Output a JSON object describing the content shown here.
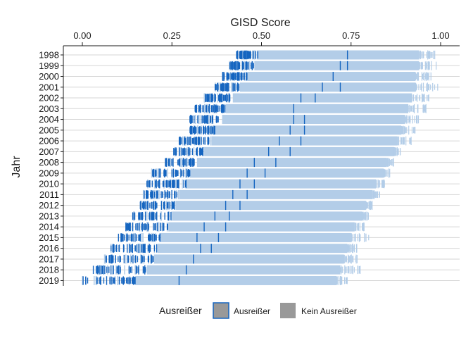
{
  "chart_data": {
    "type": "strip",
    "xlabel": "GISD Score",
    "ylabel": "Jahr",
    "xlim": [
      -0.05,
      1.03
    ],
    "x_ticks": [
      0.0,
      0.25,
      0.5,
      0.75,
      1.0
    ],
    "x_tick_labels": [
      "0.00",
      "0.25",
      "0.50",
      "0.75",
      "1.00"
    ],
    "x_axis_position": "top",
    "categories": [
      "1998",
      "1999",
      "2000",
      "2001",
      "2002",
      "2003",
      "2004",
      "2005",
      "2006",
      "2007",
      "2008",
      "2009",
      "2010",
      "2011",
      "2012",
      "2013",
      "2014",
      "2015",
      "2016",
      "2017",
      "2018",
      "2019"
    ],
    "grid": "horizontal",
    "legend": {
      "title": "Ausreißer",
      "position": "bottom",
      "entries": [
        {
          "label": "Ausreißer",
          "color": "#1565c0"
        },
        {
          "label": "Kein Ausreißer",
          "color": "#b3cde8"
        }
      ]
    },
    "series": [
      {
        "name": "Kein Ausreißer",
        "color": "#b3cde8",
        "core_min": [
          0.49,
          0.48,
          0.46,
          0.44,
          0.42,
          0.4,
          0.39,
          0.37,
          0.36,
          0.34,
          0.32,
          0.3,
          0.29,
          0.27,
          0.26,
          0.25,
          0.24,
          0.22,
          0.21,
          0.2,
          0.18,
          0.15
        ],
        "core_max": [
          0.94,
          0.94,
          0.93,
          0.93,
          0.92,
          0.91,
          0.9,
          0.89,
          0.88,
          0.87,
          0.85,
          0.84,
          0.82,
          0.81,
          0.79,
          0.78,
          0.76,
          0.75,
          0.74,
          0.73,
          0.72,
          0.71
        ],
        "max": [
          0.99,
          0.99,
          0.98,
          1.0,
          0.97,
          0.96,
          0.94,
          0.93,
          0.92,
          0.89,
          0.87,
          0.86,
          0.85,
          0.83,
          0.81,
          0.8,
          0.79,
          0.8,
          0.78,
          0.77,
          0.78,
          0.74
        ]
      },
      {
        "name": "Ausreißer",
        "color": "#1565c0",
        "dense_min": [
          0.43,
          0.41,
          0.39,
          0.37,
          0.34,
          0.31,
          0.3,
          0.3,
          0.27,
          0.25,
          0.23,
          0.19,
          0.18,
          0.17,
          0.16,
          0.14,
          0.12,
          0.1,
          0.08,
          0.06,
          0.03,
          0.0
        ],
        "dense_max": [
          0.49,
          0.48,
          0.46,
          0.44,
          0.42,
          0.4,
          0.39,
          0.37,
          0.36,
          0.34,
          0.32,
          0.3,
          0.29,
          0.27,
          0.26,
          0.25,
          0.24,
          0.22,
          0.21,
          0.2,
          0.18,
          0.15
        ],
        "high": [
          [
            0.74
          ],
          [
            0.72,
            0.74
          ],
          [
            0.7
          ],
          [
            0.67,
            0.72
          ],
          [
            0.61,
            0.65
          ],
          [
            0.59
          ],
          [
            0.59,
            0.62
          ],
          [
            0.58,
            0.62
          ],
          [
            0.55,
            0.61
          ],
          [
            0.52,
            0.58
          ],
          [
            0.48,
            0.54
          ],
          [
            0.46,
            0.51
          ],
          [
            0.44,
            0.48
          ],
          [
            0.42,
            0.46
          ],
          [
            0.4,
            0.44
          ],
          [
            0.37,
            0.41
          ],
          [
            0.34,
            0.4
          ],
          [
            0.32,
            0.38
          ],
          [
            0.33,
            0.36
          ],
          [
            0.31
          ],
          [
            0.29
          ],
          [
            0.27
          ]
        ]
      }
    ]
  }
}
